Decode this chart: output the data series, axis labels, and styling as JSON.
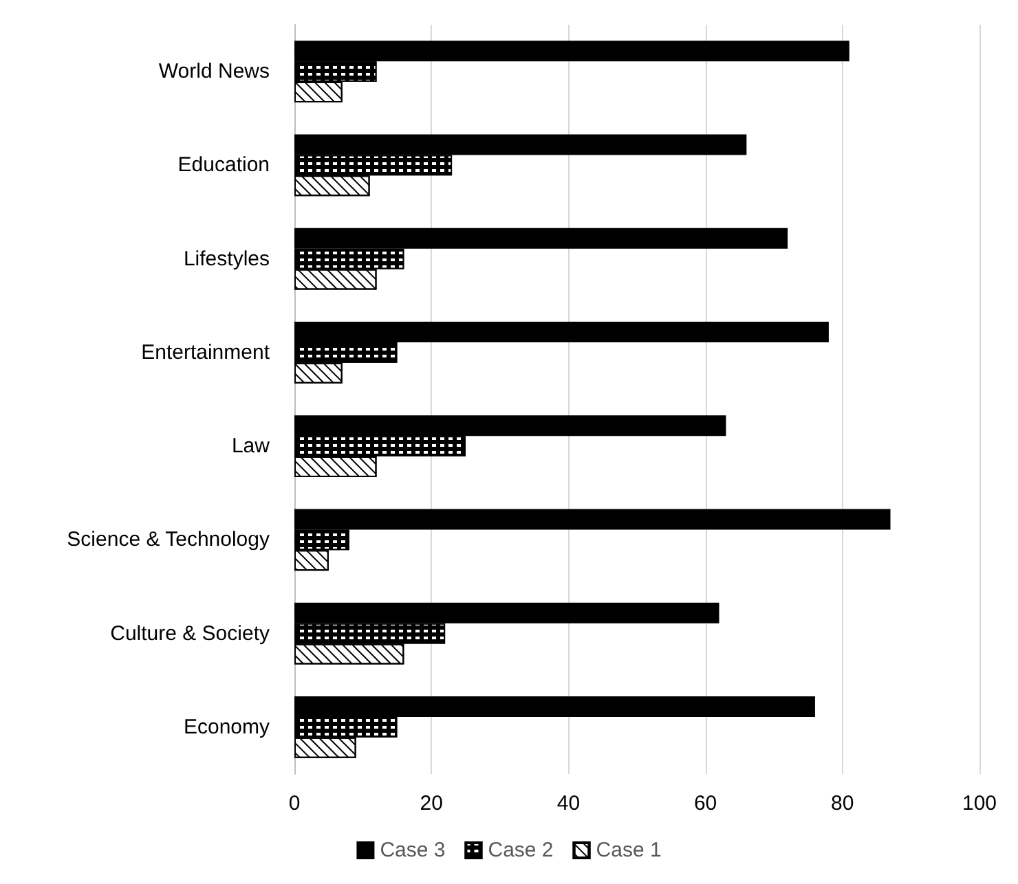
{
  "chart_data": {
    "type": "bar",
    "orientation": "horizontal",
    "categories": [
      "World News",
      "Education",
      "Lifestyles",
      "Entertainment",
      "Law",
      "Science & Technology",
      "Culture & Society",
      "Economy"
    ],
    "series": [
      {
        "name": "Case 3",
        "color": "#000000",
        "values": [
          81,
          66,
          72,
          78,
          63,
          87,
          62,
          76
        ]
      },
      {
        "name": "Case 2",
        "color": "#000000",
        "values": [
          12,
          23,
          16,
          15,
          25,
          8,
          22,
          15
        ]
      },
      {
        "name": "Case 1",
        "color": "#ffffff",
        "values": [
          7,
          11,
          12,
          7,
          12,
          5,
          16,
          9
        ]
      }
    ],
    "xlim": [
      0,
      100
    ],
    "xticks": [
      0,
      20,
      40,
      60,
      80,
      100
    ],
    "grid": "x",
    "legend": "bottom"
  }
}
